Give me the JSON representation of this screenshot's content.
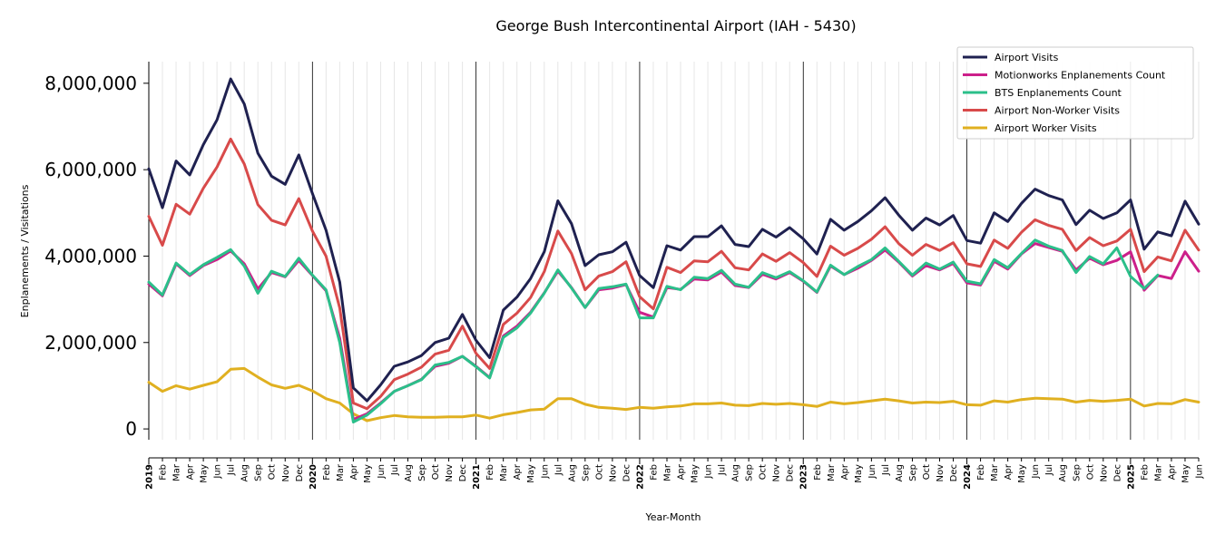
{
  "chart_data": {
    "type": "line",
    "title": "George Bush Intercontinental Airport (IAH - 5430)",
    "xlabel": "Year-Month",
    "ylabel": "Enplanements / Visitations",
    "ylim": [
      -250000,
      8500000
    ],
    "y_ticks": [
      0,
      2000000,
      4000000,
      6000000,
      8000000
    ],
    "y_tick_labels": [
      "0",
      "2,000,000",
      "4,000,000",
      "6,000,000",
      "8,000,000"
    ],
    "grid": "vertical",
    "legend_position": "top-right",
    "x": [
      "2019-01",
      "2019-02",
      "2019-03",
      "2019-04",
      "2019-05",
      "2019-06",
      "2019-07",
      "2019-08",
      "2019-09",
      "2019-10",
      "2019-11",
      "2019-12",
      "2020-01",
      "2020-02",
      "2020-03",
      "2020-04",
      "2020-05",
      "2020-06",
      "2020-07",
      "2020-08",
      "2020-09",
      "2020-10",
      "2020-11",
      "2020-12",
      "2021-01",
      "2021-02",
      "2021-03",
      "2021-04",
      "2021-05",
      "2021-06",
      "2021-07",
      "2021-08",
      "2021-09",
      "2021-10",
      "2021-11",
      "2021-12",
      "2022-01",
      "2022-02",
      "2022-03",
      "2022-04",
      "2022-05",
      "2022-06",
      "2022-07",
      "2022-08",
      "2022-09",
      "2022-10",
      "2022-11",
      "2022-12",
      "2023-01",
      "2023-02",
      "2023-03",
      "2023-04",
      "2023-05",
      "2023-06",
      "2023-07",
      "2023-08",
      "2023-09",
      "2023-10",
      "2023-11",
      "2023-12",
      "2024-01",
      "2024-02",
      "2024-03",
      "2024-04",
      "2024-05",
      "2024-06",
      "2024-07",
      "2024-08",
      "2024-09",
      "2024-10",
      "2024-11",
      "2024-12",
      "2025-01",
      "2025-02",
      "2025-03",
      "2025-04",
      "2025-05",
      "2025-06"
    ],
    "x_tick_labels": [
      "2019",
      "Feb",
      "Mar",
      "Apr",
      "May",
      "Jun",
      "Jul",
      "Aug",
      "Sep",
      "Oct",
      "Nov",
      "Dec",
      "2020",
      "Feb",
      "Mar",
      "Apr",
      "May",
      "Jun",
      "Jul",
      "Aug",
      "Sep",
      "Oct",
      "Nov",
      "Dec",
      "2021",
      "Feb",
      "Mar",
      "Apr",
      "May",
      "Jun",
      "Jul",
      "Aug",
      "Sep",
      "Oct",
      "Nov",
      "Dec",
      "2022",
      "Feb",
      "Mar",
      "Apr",
      "May",
      "Jun",
      "Jul",
      "Aug",
      "Sep",
      "Oct",
      "Nov",
      "Dec",
      "2023",
      "Feb",
      "Mar",
      "Apr",
      "May",
      "Jun",
      "Jul",
      "Aug",
      "Sep",
      "Oct",
      "Nov",
      "Dec",
      "2024",
      "Feb",
      "Mar",
      "Apr",
      "May",
      "Jun",
      "Jul",
      "Aug",
      "Sep",
      "Oct",
      "Nov",
      "Dec",
      "2025",
      "Feb",
      "Mar",
      "Apr",
      "May",
      "Jun"
    ],
    "series": [
      {
        "name": "Airport Visits",
        "color": "#1f2150",
        "values": [
          6020000,
          5120000,
          6200000,
          5880000,
          6580000,
          7150000,
          8100000,
          7520000,
          6380000,
          5850000,
          5660000,
          6340000,
          5450000,
          4600000,
          3400000,
          950000,
          650000,
          1020000,
          1450000,
          1550000,
          1700000,
          2000000,
          2100000,
          2650000,
          2050000,
          1650000,
          2750000,
          3050000,
          3480000,
          4100000,
          5280000,
          4750000,
          3780000,
          4030000,
          4100000,
          4320000,
          3550000,
          3270000,
          4240000,
          4140000,
          4450000,
          4450000,
          4700000,
          4270000,
          4220000,
          4620000,
          4440000,
          4660000,
          4400000,
          4050000,
          4850000,
          4600000,
          4800000,
          5050000,
          5350000,
          4950000,
          4600000,
          4880000,
          4720000,
          4940000,
          4360000,
          4300000,
          5000000,
          4800000,
          5220000,
          5550000,
          5400000,
          5300000,
          4730000,
          5060000,
          4870000,
          5000000,
          5300000,
          4160000,
          4560000,
          4470000,
          5270000,
          4740000
        ]
      },
      {
        "name": "Motionworks Enplanements Count",
        "color": "#cc1f8a",
        "values": [
          3350000,
          3080000,
          3820000,
          3550000,
          3780000,
          3920000,
          4120000,
          3820000,
          3240000,
          3620000,
          3520000,
          3900000,
          3550000,
          3200000,
          2100000,
          220000,
          350000,
          600000,
          870000,
          1000000,
          1150000,
          1450000,
          1520000,
          1680000,
          1450000,
          1190000,
          2150000,
          2380000,
          2700000,
          3150000,
          3650000,
          3270000,
          2810000,
          3220000,
          3260000,
          3340000,
          2700000,
          2590000,
          3270000,
          3230000,
          3470000,
          3450000,
          3630000,
          3320000,
          3270000,
          3580000,
          3470000,
          3620000,
          3420000,
          3160000,
          3770000,
          3570000,
          3720000,
          3900000,
          4140000,
          3860000,
          3540000,
          3780000,
          3680000,
          3830000,
          3380000,
          3330000,
          3880000,
          3700000,
          4050000,
          4290000,
          4200000,
          4110000,
          3680000,
          3950000,
          3800000,
          3900000,
          4100000,
          3210000,
          3550000,
          3480000,
          4100000,
          3650000
        ]
      },
      {
        "name": "BTS Enplanements Count",
        "color": "#2bbf8a",
        "values": [
          3400000,
          3100000,
          3840000,
          3570000,
          3800000,
          3970000,
          4150000,
          3770000,
          3140000,
          3650000,
          3530000,
          3950000,
          3560000,
          3220000,
          2000000,
          160000,
          320000,
          580000,
          870000,
          1000000,
          1140000,
          1480000,
          1540000,
          1680000,
          1440000,
          1180000,
          2120000,
          2340000,
          2680000,
          3140000,
          3680000,
          3260000,
          2810000,
          3250000,
          3290000,
          3350000,
          2570000,
          2570000,
          3300000,
          3220000,
          3510000,
          3480000,
          3670000,
          3350000,
          3280000,
          3620000,
          3500000,
          3640000,
          3430000,
          3170000,
          3790000,
          3570000,
          3760000,
          3920000,
          4190000,
          3880000,
          3560000,
          3840000,
          3700000,
          3860000,
          3420000,
          3360000,
          3920000,
          3730000,
          4060000,
          4370000,
          4230000,
          4130000,
          3620000,
          3990000,
          3820000,
          4190000,
          3530000,
          3250000,
          3560000,
          null,
          null,
          null
        ]
      },
      {
        "name": "Airport Non-Worker Visits",
        "color": "#d84a4a",
        "values": [
          4920000,
          4250000,
          5200000,
          4970000,
          5570000,
          6060000,
          6710000,
          6130000,
          5190000,
          4830000,
          4720000,
          5330000,
          4580000,
          4000000,
          2800000,
          600000,
          470000,
          750000,
          1140000,
          1270000,
          1430000,
          1730000,
          1820000,
          2380000,
          1750000,
          1400000,
          2420000,
          2680000,
          3040000,
          3640000,
          4580000,
          4060000,
          3220000,
          3540000,
          3640000,
          3870000,
          3060000,
          2780000,
          3740000,
          3620000,
          3890000,
          3870000,
          4110000,
          3730000,
          3680000,
          4050000,
          3880000,
          4080000,
          3850000,
          3530000,
          4230000,
          4020000,
          4180000,
          4390000,
          4680000,
          4290000,
          4020000,
          4270000,
          4130000,
          4310000,
          3820000,
          3760000,
          4370000,
          4180000,
          4550000,
          4840000,
          4710000,
          4620000,
          4130000,
          4430000,
          4240000,
          4350000,
          4620000,
          3640000,
          3980000,
          3890000,
          4600000,
          4140000
        ]
      },
      {
        "name": "Airport Worker Visits",
        "color": "#e0b020",
        "values": [
          1080000,
          870000,
          1000000,
          920000,
          1010000,
          1090000,
          1380000,
          1400000,
          1200000,
          1020000,
          940000,
          1010000,
          880000,
          700000,
          600000,
          350000,
          190000,
          260000,
          310000,
          280000,
          270000,
          270000,
          280000,
          280000,
          320000,
          250000,
          330000,
          380000,
          440000,
          460000,
          700000,
          700000,
          570000,
          500000,
          480000,
          450000,
          500000,
          480000,
          510000,
          530000,
          580000,
          580000,
          600000,
          550000,
          540000,
          590000,
          570000,
          590000,
          560000,
          520000,
          620000,
          580000,
          610000,
          650000,
          690000,
          650000,
          600000,
          620000,
          610000,
          640000,
          560000,
          550000,
          650000,
          620000,
          680000,
          710000,
          700000,
          690000,
          620000,
          660000,
          640000,
          660000,
          690000,
          530000,
          590000,
          580000,
          680000,
          620000
        ]
      }
    ]
  }
}
